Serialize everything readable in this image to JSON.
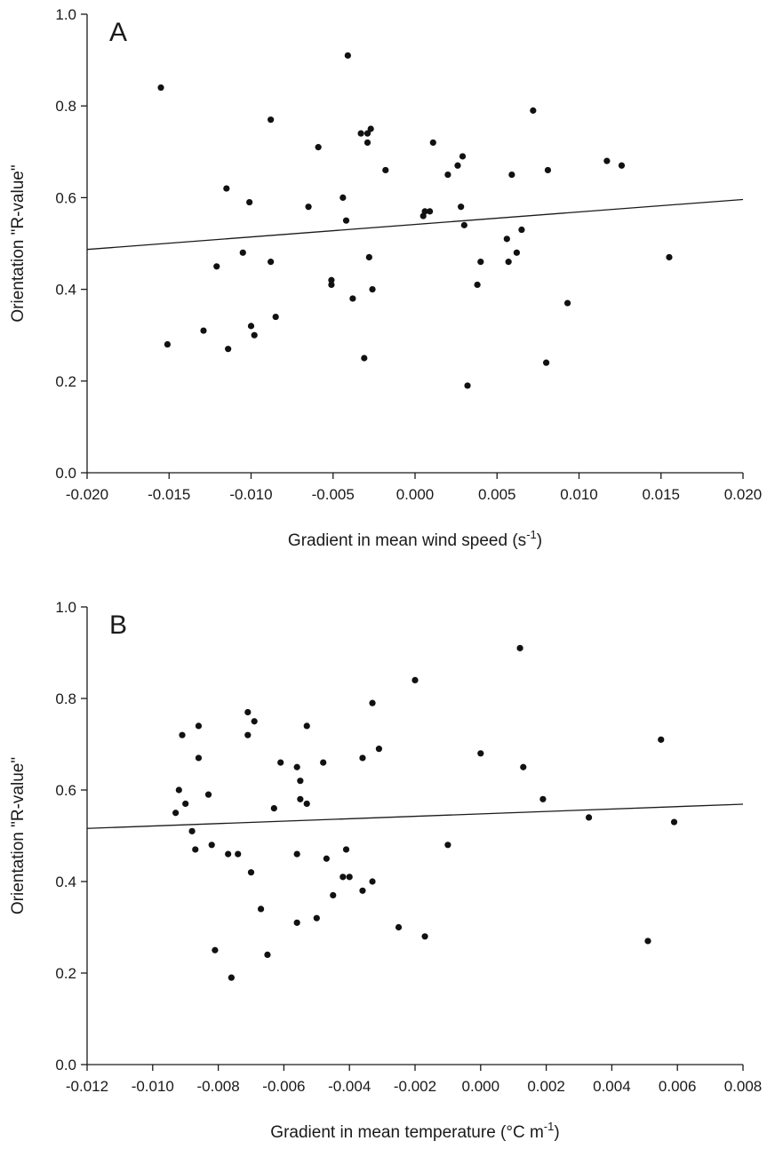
{
  "chart_data": [
    {
      "type": "scatter",
      "panel_label": "A",
      "xlabel": "Gradient in mean wind speed (s",
      "xlabel_sup": "-1",
      "xlabel_end": ")",
      "ylabel": "Orientation \"R-value\"",
      "xlim": [
        -0.02,
        0.02
      ],
      "ylim": [
        0.0,
        1.0
      ],
      "xticks": [
        "-0.020",
        "-0.015",
        "-0.010",
        "-0.005",
        "0.000",
        "0.005",
        "0.010",
        "0.015",
        "0.020"
      ],
      "yticks": [
        "0.0",
        "0.2",
        "0.4",
        "0.6",
        "0.8",
        "1.0"
      ],
      "grid": false,
      "trend_line": {
        "x": [
          -0.02,
          0.02
        ],
        "y": [
          0.487,
          0.596
        ]
      },
      "points": [
        [
          -0.0155,
          0.84
        ],
        [
          -0.0151,
          0.28
        ],
        [
          -0.0129,
          0.31
        ],
        [
          -0.0121,
          0.45
        ],
        [
          -0.0115,
          0.62
        ],
        [
          -0.0114,
          0.27
        ],
        [
          -0.0105,
          0.48
        ],
        [
          -0.0101,
          0.59
        ],
        [
          -0.01,
          0.32
        ],
        [
          -0.0098,
          0.3
        ],
        [
          -0.0088,
          0.77
        ],
        [
          -0.0088,
          0.46
        ],
        [
          -0.0085,
          0.34
        ],
        [
          -0.0065,
          0.58
        ],
        [
          -0.0059,
          0.71
        ],
        [
          -0.0051,
          0.42
        ],
        [
          -0.0051,
          0.41
        ],
        [
          -0.0044,
          0.6
        ],
        [
          -0.0042,
          0.55
        ],
        [
          -0.0041,
          0.91
        ],
        [
          -0.0038,
          0.38
        ],
        [
          -0.0033,
          0.74
        ],
        [
          -0.0031,
          0.25
        ],
        [
          -0.0029,
          0.74
        ],
        [
          -0.0029,
          0.72
        ],
        [
          -0.0028,
          0.47
        ],
        [
          -0.0027,
          0.75
        ],
        [
          -0.0026,
          0.4
        ],
        [
          -0.0018,
          0.66
        ],
        [
          0.0005,
          0.56
        ],
        [
          0.0006,
          0.57
        ],
        [
          0.0009,
          0.57
        ],
        [
          0.0011,
          0.72
        ],
        [
          0.002,
          0.65
        ],
        [
          0.0026,
          0.67
        ],
        [
          0.0028,
          0.58
        ],
        [
          0.0029,
          0.69
        ],
        [
          0.003,
          0.54
        ],
        [
          0.0032,
          0.19
        ],
        [
          0.0038,
          0.41
        ],
        [
          0.004,
          0.46
        ],
        [
          0.0056,
          0.51
        ],
        [
          0.0057,
          0.46
        ],
        [
          0.0059,
          0.65
        ],
        [
          0.0062,
          0.48
        ],
        [
          0.0065,
          0.53
        ],
        [
          0.0072,
          0.79
        ],
        [
          0.008,
          0.24
        ],
        [
          0.0081,
          0.66
        ],
        [
          0.0093,
          0.37
        ],
        [
          0.0117,
          0.68
        ],
        [
          0.0126,
          0.67
        ],
        [
          0.0155,
          0.47
        ]
      ]
    },
    {
      "type": "scatter",
      "panel_label": "B",
      "xlabel": "Gradient in mean temperature (°C m",
      "xlabel_sup": "-1",
      "xlabel_end": ")",
      "ylabel": "Orientation \"R-value\"",
      "xlim": [
        -0.012,
        0.008
      ],
      "ylim": [
        0.0,
        1.0
      ],
      "xticks": [
        "-0.012",
        "-0.010",
        "-0.008",
        "-0.006",
        "-0.004",
        "-0.002",
        "0.000",
        "0.002",
        "0.004",
        "0.006",
        "0.008"
      ],
      "yticks": [
        "0.0",
        "0.2",
        "0.4",
        "0.6",
        "0.8",
        "1.0"
      ],
      "grid": false,
      "trend_line": {
        "x": [
          -0.012,
          0.008
        ],
        "y": [
          0.516,
          0.569
        ]
      },
      "points": [
        [
          -0.0093,
          0.55
        ],
        [
          -0.0092,
          0.6
        ],
        [
          -0.0091,
          0.72
        ],
        [
          -0.009,
          0.57
        ],
        [
          -0.0088,
          0.51
        ],
        [
          -0.0087,
          0.47
        ],
        [
          -0.0086,
          0.74
        ],
        [
          -0.0086,
          0.67
        ],
        [
          -0.0083,
          0.59
        ],
        [
          -0.0082,
          0.48
        ],
        [
          -0.0081,
          0.25
        ],
        [
          -0.0077,
          0.46
        ],
        [
          -0.0076,
          0.19
        ],
        [
          -0.0074,
          0.46
        ],
        [
          -0.0071,
          0.77
        ],
        [
          -0.0071,
          0.72
        ],
        [
          -0.007,
          0.42
        ],
        [
          -0.0069,
          0.75
        ],
        [
          -0.0067,
          0.34
        ],
        [
          -0.0065,
          0.24
        ],
        [
          -0.0063,
          0.56
        ],
        [
          -0.0061,
          0.66
        ],
        [
          -0.0056,
          0.65
        ],
        [
          -0.0056,
          0.46
        ],
        [
          -0.0056,
          0.31
        ],
        [
          -0.0055,
          0.58
        ],
        [
          -0.0055,
          0.62
        ],
        [
          -0.0053,
          0.74
        ],
        [
          -0.0053,
          0.57
        ],
        [
          -0.005,
          0.32
        ],
        [
          -0.0048,
          0.66
        ],
        [
          -0.0047,
          0.45
        ],
        [
          -0.0045,
          0.37
        ],
        [
          -0.0042,
          0.41
        ],
        [
          -0.0041,
          0.47
        ],
        [
          -0.004,
          0.41
        ],
        [
          -0.0036,
          0.67
        ],
        [
          -0.0036,
          0.38
        ],
        [
          -0.0033,
          0.79
        ],
        [
          -0.0033,
          0.4
        ],
        [
          -0.0031,
          0.69
        ],
        [
          -0.0025,
          0.3
        ],
        [
          -0.002,
          0.84
        ],
        [
          -0.0017,
          0.28
        ],
        [
          -0.001,
          0.48
        ],
        [
          0.0,
          0.68
        ],
        [
          0.0012,
          0.91
        ],
        [
          0.0013,
          0.65
        ],
        [
          0.0019,
          0.58
        ],
        [
          0.0033,
          0.54
        ],
        [
          0.0051,
          0.27
        ],
        [
          0.0055,
          0.71
        ],
        [
          0.0059,
          0.53
        ]
      ]
    }
  ]
}
